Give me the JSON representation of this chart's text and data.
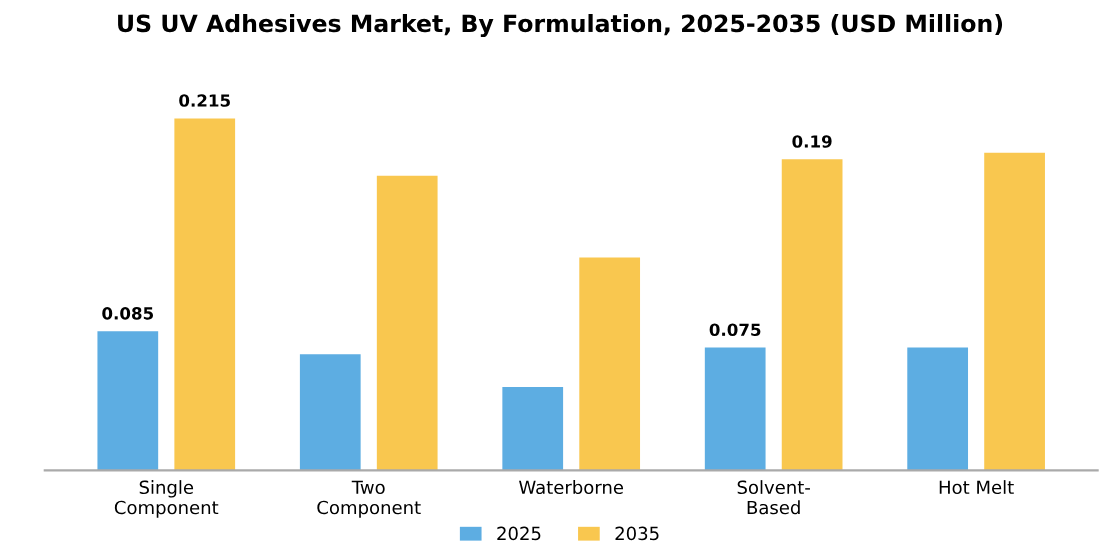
{
  "chart_data": {
    "type": "bar",
    "title": "US UV Adhesives Market, By Formulation, 2025-2035 (USD Million)",
    "categories": [
      "Single\nComponent",
      "Two\nComponent",
      "Waterborne",
      "Solvent-\nBased",
      "Hot Melt"
    ],
    "series": [
      {
        "name": "2025",
        "color": "#5dade2",
        "values": [
          0.085,
          0.071,
          0.051,
          0.075,
          0.075
        ],
        "value_labels": [
          "0.085",
          null,
          null,
          "0.075",
          null
        ]
      },
      {
        "name": "2035",
        "color": "#f9c74f",
        "values": [
          0.215,
          0.18,
          0.13,
          0.19,
          0.194
        ],
        "value_labels": [
          "0.215",
          null,
          null,
          "0.19",
          null
        ]
      }
    ],
    "tick_labels": "x",
    "grid": false,
    "legend": "bottom"
  }
}
